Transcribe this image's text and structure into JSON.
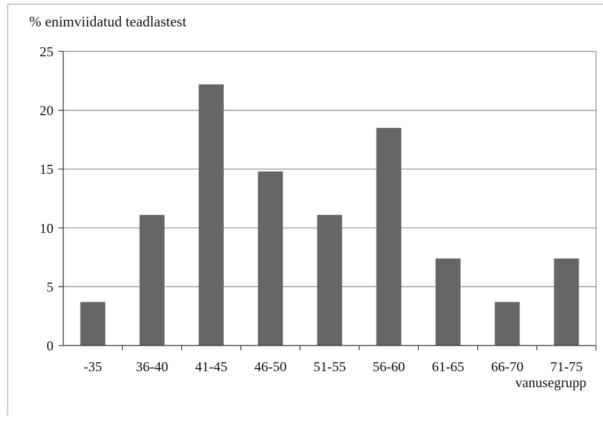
{
  "chart_data": {
    "type": "bar",
    "title": "",
    "ylabel": "% enimviidatud teadlastest",
    "xlabel": "vanusegrupp",
    "categories": [
      "-35",
      "36-40",
      "41-45",
      "46-50",
      "51-55",
      "56-60",
      "61-65",
      "66-70",
      "71-75"
    ],
    "values": [
      3.7,
      11.1,
      22.2,
      14.8,
      11.1,
      18.5,
      7.4,
      3.7,
      7.4
    ],
    "ylim": [
      0,
      25
    ],
    "yticks": [
      "0",
      "5",
      "10",
      "15",
      "20",
      "25"
    ],
    "grid": true,
    "bar_color": "#666666",
    "grid_color": "#8c8c8c",
    "axis_color": "#333333"
  }
}
